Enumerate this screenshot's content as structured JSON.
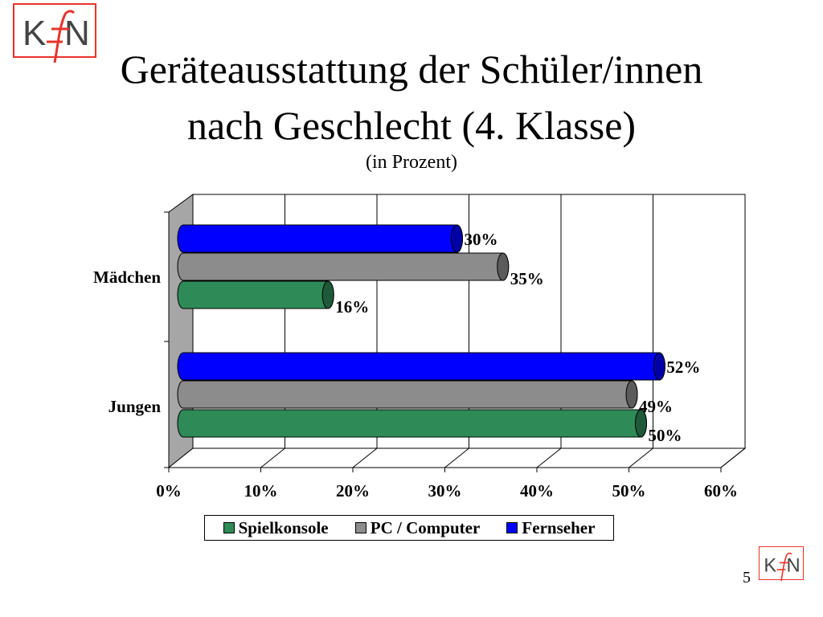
{
  "logo": {
    "text": "KfN"
  },
  "title": {
    "line1": "Geräteausstattung der Schüler/innen",
    "line2": "nach Geschlecht (4. Klasse)",
    "subtitle": "(in Prozent)"
  },
  "page_number": "5",
  "chart_data": {
    "type": "bar",
    "orientation": "horizontal",
    "style": "3d-cylinder",
    "categories": [
      "Mädchen",
      "Jungen"
    ],
    "series": [
      {
        "name": "Spielkonsole",
        "color": "#2e8b57",
        "values": [
          16,
          50
        ]
      },
      {
        "name": "PC / Computer",
        "color": "#8c8c8c",
        "values": [
          35,
          49
        ]
      },
      {
        "name": "Fernseher",
        "color": "#0000ff",
        "values": [
          30,
          52
        ]
      }
    ],
    "data_labels": [
      [
        "16%",
        "50%"
      ],
      [
        "35%",
        "49%"
      ],
      [
        "30%",
        "52%"
      ]
    ],
    "xlim": [
      0,
      60
    ],
    "ticks": [
      "0%",
      "10%",
      "20%",
      "30%",
      "40%",
      "50%",
      "60%"
    ],
    "grid": true,
    "legend_position": "bottom"
  }
}
